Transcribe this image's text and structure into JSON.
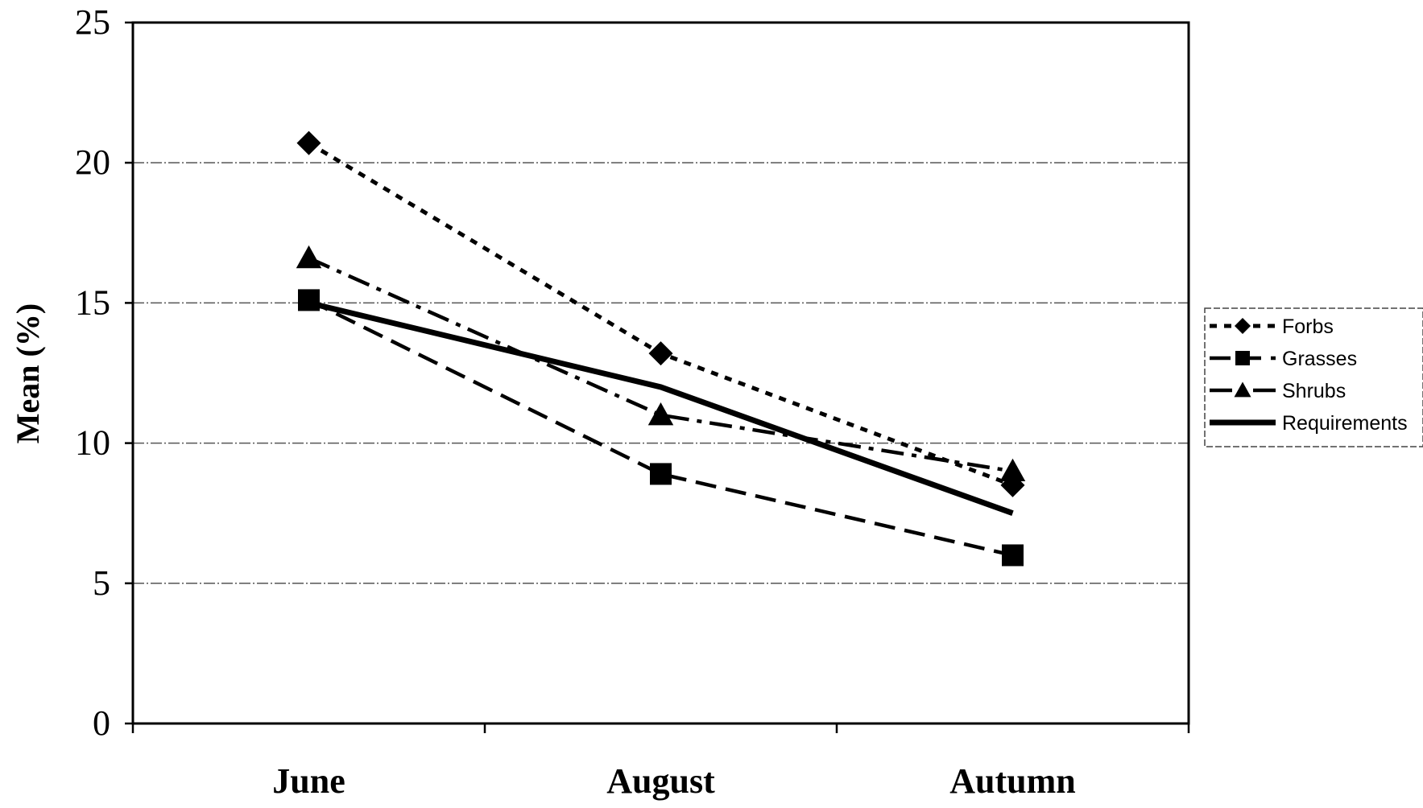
{
  "chart_data": {
    "type": "line",
    "title": "",
    "xlabel": "",
    "ylabel": "Mean (%)",
    "categories": [
      "June",
      "August",
      "Autumn"
    ],
    "ylim": [
      0,
      25
    ],
    "yticks": [
      0,
      5,
      10,
      15,
      20,
      25
    ],
    "grid": true,
    "legend_position": "right",
    "series": [
      {
        "name": "Forbs",
        "values": [
          20.7,
          13.2,
          8.5
        ],
        "marker": "diamond",
        "dash": "dotted",
        "color": "#000000"
      },
      {
        "name": "Grasses",
        "values": [
          15.1,
          8.9,
          6.0
        ],
        "marker": "square",
        "dash": "long-dash",
        "color": "#000000"
      },
      {
        "name": "Shrubs",
        "values": [
          16.6,
          11.0,
          9.0
        ],
        "marker": "triangle",
        "dash": "dash-dot",
        "color": "#000000"
      },
      {
        "name": "Requirements",
        "values": [
          15.0,
          12.0,
          7.5
        ],
        "marker": "none",
        "dash": "solid",
        "color": "#000000"
      }
    ]
  }
}
